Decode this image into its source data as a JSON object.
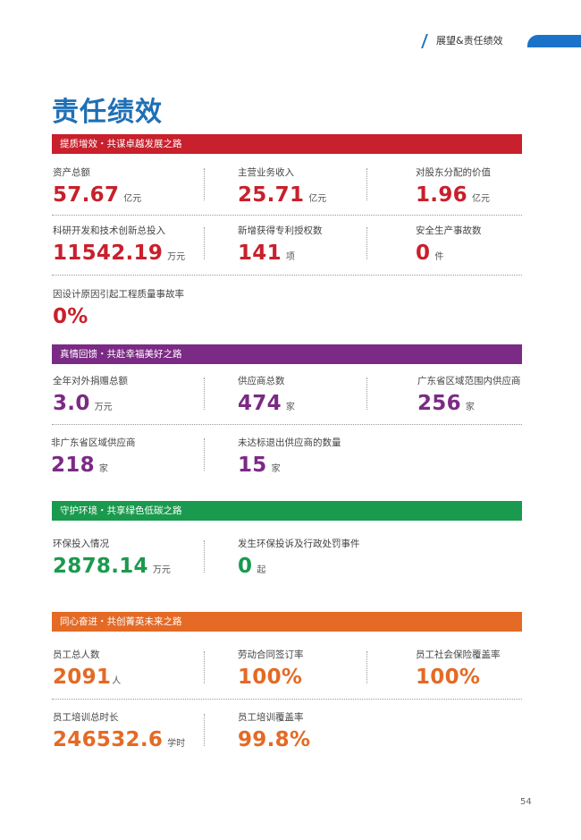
{
  "header": {
    "section": "展望&责任绩效"
  },
  "title": "责任绩效",
  "colors": {
    "red": "#c8202c",
    "purple": "#7b2a85",
    "green": "#1a9a4e",
    "orange": "#e46a25",
    "blue": "#1f6fb5"
  },
  "sections": [
    {
      "banner": "提质增效・共谋卓越发展之路",
      "items": [
        {
          "label": "资产总额",
          "value": "57.67",
          "unit": "亿元"
        },
        {
          "label": "主营业务收入",
          "value": "25.71",
          "unit": "亿元"
        },
        {
          "label": "对股东分配的价值",
          "value": "1.96",
          "unit": "亿元"
        },
        {
          "label": "科研开发和技术创新总投入",
          "value": "11542.19",
          "unit": "万元"
        },
        {
          "label": "新增获得专利授权数",
          "value": "141",
          "unit": "项"
        },
        {
          "label": "安全生产事故数",
          "value": "0",
          "unit": "件"
        },
        {
          "label": "因设计原因引起工程质量事故率",
          "value": "0%",
          "unit": ""
        }
      ]
    },
    {
      "banner": "真情回馈・共赴幸福美好之路",
      "items": [
        {
          "label": "全年对外捐赠总额",
          "value": "3.0",
          "unit": "万元"
        },
        {
          "label": "供应商总数",
          "value": "474",
          "unit": "家"
        },
        {
          "label": "广东省区域范围内供应商",
          "value": "256",
          "unit": "家"
        },
        {
          "label": "非广东省区域供应商",
          "value": "218",
          "unit": "家"
        },
        {
          "label": "未达标退出供应商的数量",
          "value": "15",
          "unit": "家"
        }
      ]
    },
    {
      "banner": "守护环境・共享绿色低碳之路",
      "items": [
        {
          "label": "环保投入情况",
          "value": "2878.14",
          "unit": "万元"
        },
        {
          "label": "发生环保投诉及行政处罚事件",
          "value": "0",
          "unit": "起"
        }
      ]
    },
    {
      "banner": "同心奋进・共创菁英未来之路",
      "items": [
        {
          "label": "员工总人数",
          "value": "2091",
          "unit": "人"
        },
        {
          "label": "劳动合同签订率",
          "value": "100%",
          "unit": ""
        },
        {
          "label": "员工社会保险覆盖率",
          "value": "100%",
          "unit": ""
        },
        {
          "label": "员工培训总时长",
          "value": "246532.6",
          "unit": "学时"
        },
        {
          "label": "员工培训覆盖率",
          "value": "99.8%",
          "unit": ""
        }
      ]
    }
  ],
  "page_number": "54"
}
